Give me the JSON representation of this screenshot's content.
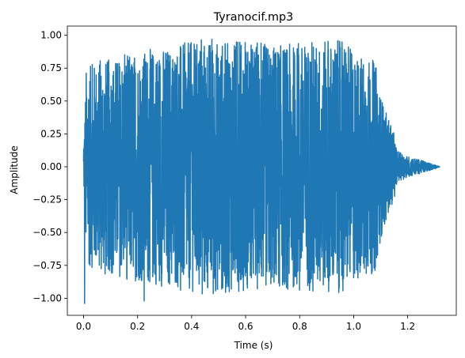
{
  "chart_data": {
    "type": "line",
    "title": "Tyranocif.mp3",
    "xlabel": "Time (s)",
    "ylabel": "Amplitude",
    "xlim": [
      -0.06,
      1.38
    ],
    "ylim": [
      -1.13,
      1.07
    ],
    "xticks": [
      0.0,
      0.2,
      0.4,
      0.6,
      0.8,
      1.0,
      1.2
    ],
    "xtick_labels": [
      "0.0",
      "0.2",
      "0.4",
      "0.6",
      "0.8",
      "1.0",
      "1.2"
    ],
    "yticks": [
      1.0,
      0.75,
      0.5,
      0.25,
      0.0,
      -0.25,
      -0.5,
      -0.75,
      -1.0
    ],
    "ytick_labels": [
      "1.00",
      "0.75",
      "0.50",
      "0.25",
      "0.00",
      "−0.25",
      "−0.50",
      "−0.75",
      "−1.00"
    ],
    "grid": false,
    "legend": "none",
    "series": [
      {
        "color": "#1f77b4",
        "duration": 1.32,
        "envelope": [
          [
            0.0,
            0.1
          ],
          [
            0.01,
            0.75
          ],
          [
            0.05,
            0.8
          ],
          [
            0.15,
            0.85
          ],
          [
            0.25,
            0.9
          ],
          [
            0.45,
            0.97
          ],
          [
            0.55,
            0.95
          ],
          [
            0.75,
            0.93
          ],
          [
            0.95,
            0.96
          ],
          [
            1.0,
            0.88
          ],
          [
            1.08,
            0.8
          ],
          [
            1.1,
            0.55
          ],
          [
            1.13,
            0.35
          ],
          [
            1.15,
            0.25
          ],
          [
            1.16,
            0.12
          ],
          [
            1.2,
            0.08
          ],
          [
            1.25,
            0.05
          ],
          [
            1.3,
            0.015
          ],
          [
            1.32,
            0.0
          ]
        ],
        "min_value": -1.04,
        "max_value": 0.97
      }
    ]
  }
}
